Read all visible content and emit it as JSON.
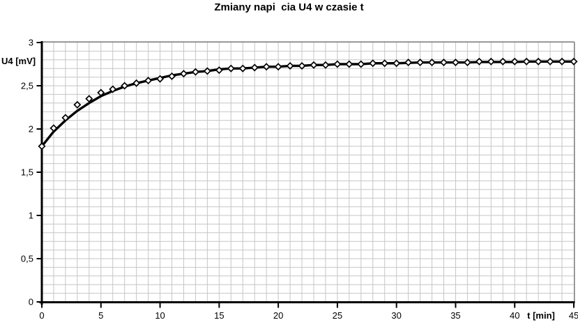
{
  "title": "Zmiany napi  cia U4 w czasie t",
  "axes": {
    "y_title": "U4 [mV]",
    "x_title": "t [min]"
  },
  "colors": {
    "background": "#ffffff",
    "minor_grid": "#c6c6c6",
    "plot_border": "#808080",
    "axis": "#000000",
    "series_line": "#000000",
    "marker_stroke": "#000000",
    "marker_fill": "#ffffff",
    "text": "#000000"
  },
  "chart_data": {
    "type": "line",
    "title": "Zmiany napi  cia U4 w czasie t",
    "xlabel": "t [min]",
    "ylabel": "U4 [mV]",
    "xlim": [
      0,
      45
    ],
    "ylim": [
      0,
      3
    ],
    "x_tick_values": [
      0,
      5,
      10,
      15,
      20,
      25,
      30,
      35,
      40,
      45
    ],
    "x_tick_labels": [
      "0",
      "5",
      "10",
      "15",
      "20",
      "25",
      "30",
      "35",
      "40",
      "45"
    ],
    "y_tick_values": [
      0,
      0.5,
      1,
      1.5,
      2,
      2.5,
      3
    ],
    "y_tick_labels": [
      "0",
      "0,5",
      "1",
      "1,5",
      "2",
      "2,5",
      "3"
    ],
    "minor_grid": {
      "x_step": 1,
      "y_step": 0.1
    },
    "grid": "on",
    "legend": "none",
    "x": [
      0,
      1,
      2,
      3,
      4,
      5,
      6,
      7,
      8,
      9,
      10,
      11,
      12,
      13,
      14,
      15,
      16,
      17,
      18,
      19,
      20,
      21,
      22,
      23,
      24,
      25,
      26,
      27,
      28,
      29,
      30,
      31,
      32,
      33,
      34,
      35,
      36,
      37,
      38,
      39,
      40,
      41,
      42,
      43,
      44,
      45
    ],
    "series": [
      {
        "name": "measured-points",
        "style": "open-diamond-markers",
        "values": [
          1.8,
          2.01,
          2.13,
          2.28,
          2.35,
          2.42,
          2.46,
          2.5,
          2.53,
          2.56,
          2.58,
          2.61,
          2.64,
          2.66,
          2.67,
          2.68,
          2.7,
          2.7,
          2.71,
          2.72,
          2.72,
          2.73,
          2.73,
          2.74,
          2.74,
          2.75,
          2.75,
          2.75,
          2.76,
          2.76,
          2.76,
          2.77,
          2.77,
          2.77,
          2.77,
          2.77,
          2.77,
          2.78,
          2.78,
          2.78,
          2.78,
          2.78,
          2.78,
          2.78,
          2.78,
          2.78
        ]
      },
      {
        "name": "smooth-curve",
        "style": "thick-line",
        "values": [
          1.8,
          1.97,
          2.1,
          2.21,
          2.3,
          2.38,
          2.44,
          2.49,
          2.53,
          2.56,
          2.59,
          2.62,
          2.64,
          2.66,
          2.67,
          2.69,
          2.7,
          2.7,
          2.71,
          2.72,
          2.72,
          2.73,
          2.73,
          2.74,
          2.74,
          2.75,
          2.75,
          2.75,
          2.76,
          2.76,
          2.76,
          2.765,
          2.77,
          2.77,
          2.77,
          2.77,
          2.77,
          2.775,
          2.775,
          2.775,
          2.775,
          2.78,
          2.78,
          2.78,
          2.78,
          2.78
        ]
      }
    ]
  }
}
